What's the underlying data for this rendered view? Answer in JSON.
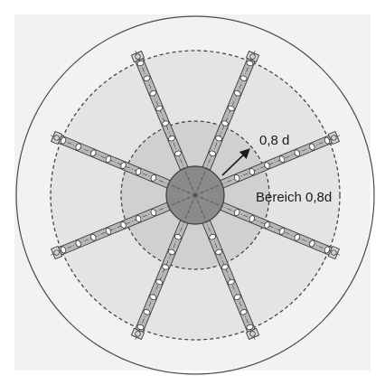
{
  "labels": {
    "radius_marker": "0,8 d",
    "zone": "Bereich 0,8d"
  },
  "colors": {
    "panel_background": "#f2f2f2",
    "outer_circle_stroke": "#4a4a4a",
    "outer_zone_fill": "#e4e4e4",
    "inner_zone_fill": "#d0d0d0",
    "hub_fill": "#8a8a8a",
    "arm_fill": "#b8b8b8",
    "line_color": "#3a3a3a"
  },
  "arm_count": 8
}
